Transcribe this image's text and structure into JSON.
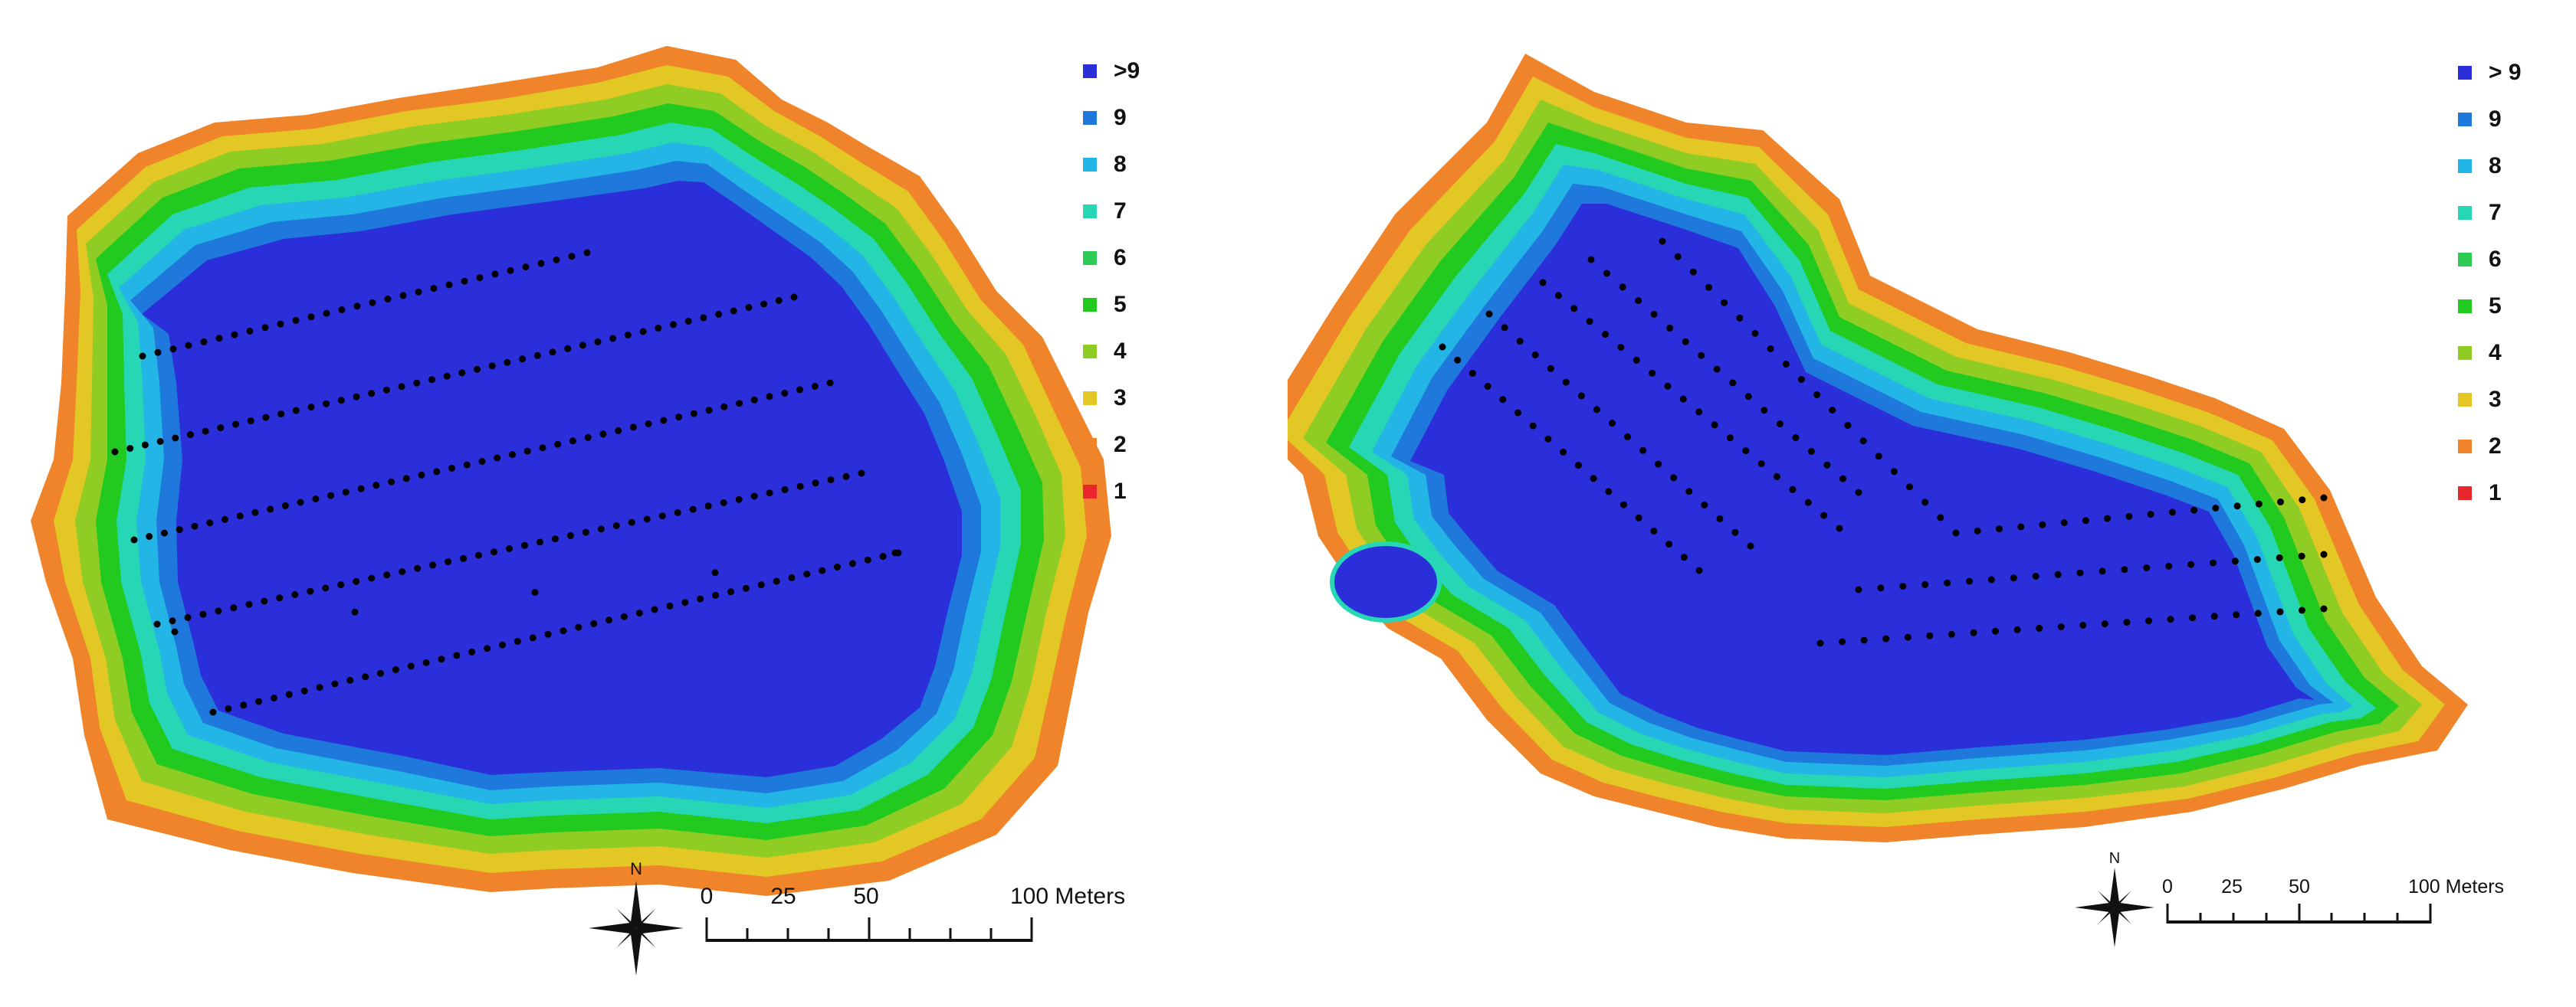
{
  "legend_left": [
    {
      "label": ">9",
      "color": "#2b2fd9"
    },
    {
      "label": "9",
      "color": "#1f78dc"
    },
    {
      "label": "8",
      "color": "#22b5e5"
    },
    {
      "label": "7",
      "color": "#27d6b4"
    },
    {
      "label": "6",
      "color": "#2ecb55"
    },
    {
      "label": "5",
      "color": "#22c91e"
    },
    {
      "label": "4",
      "color": "#8fcd24"
    },
    {
      "label": "3",
      "color": "#e2c725"
    },
    {
      "label": "2",
      "color": "#f0842b"
    },
    {
      "label": "1",
      "color": "#e8262b"
    }
  ],
  "legend_right": [
    {
      "label": "> 9",
      "color": "#2b2fd9"
    },
    {
      "label": "9",
      "color": "#1f78dc"
    },
    {
      "label": "8",
      "color": "#22b5e5"
    },
    {
      "label": "7",
      "color": "#27d6b4"
    },
    {
      "label": "6",
      "color": "#2ecb55"
    },
    {
      "label": "5",
      "color": "#22c91e"
    },
    {
      "label": "4",
      "color": "#8fcd24"
    },
    {
      "label": "3",
      "color": "#e2c725"
    },
    {
      "label": "2",
      "color": "#f0842b"
    },
    {
      "label": "1",
      "color": "#e8262b"
    }
  ],
  "scale_left": {
    "ticks": [
      "0",
      "25",
      "50",
      "100 Meters"
    ],
    "north": "N"
  },
  "scale_right": {
    "ticks": [
      "0",
      "25",
      "50",
      "100 Meters"
    ],
    "north": "N"
  },
  "colors": {
    "deep": "#2b2fd9",
    "blue": "#1f78dc",
    "cyan": "#22b5e5",
    "aqua": "#27d6b4",
    "green": "#2ecb55",
    "lime": "#8fcd24",
    "yellow": "#e2c725",
    "orange": "#f0842b",
    "red": "#e8262b",
    "points": "#000000"
  }
}
